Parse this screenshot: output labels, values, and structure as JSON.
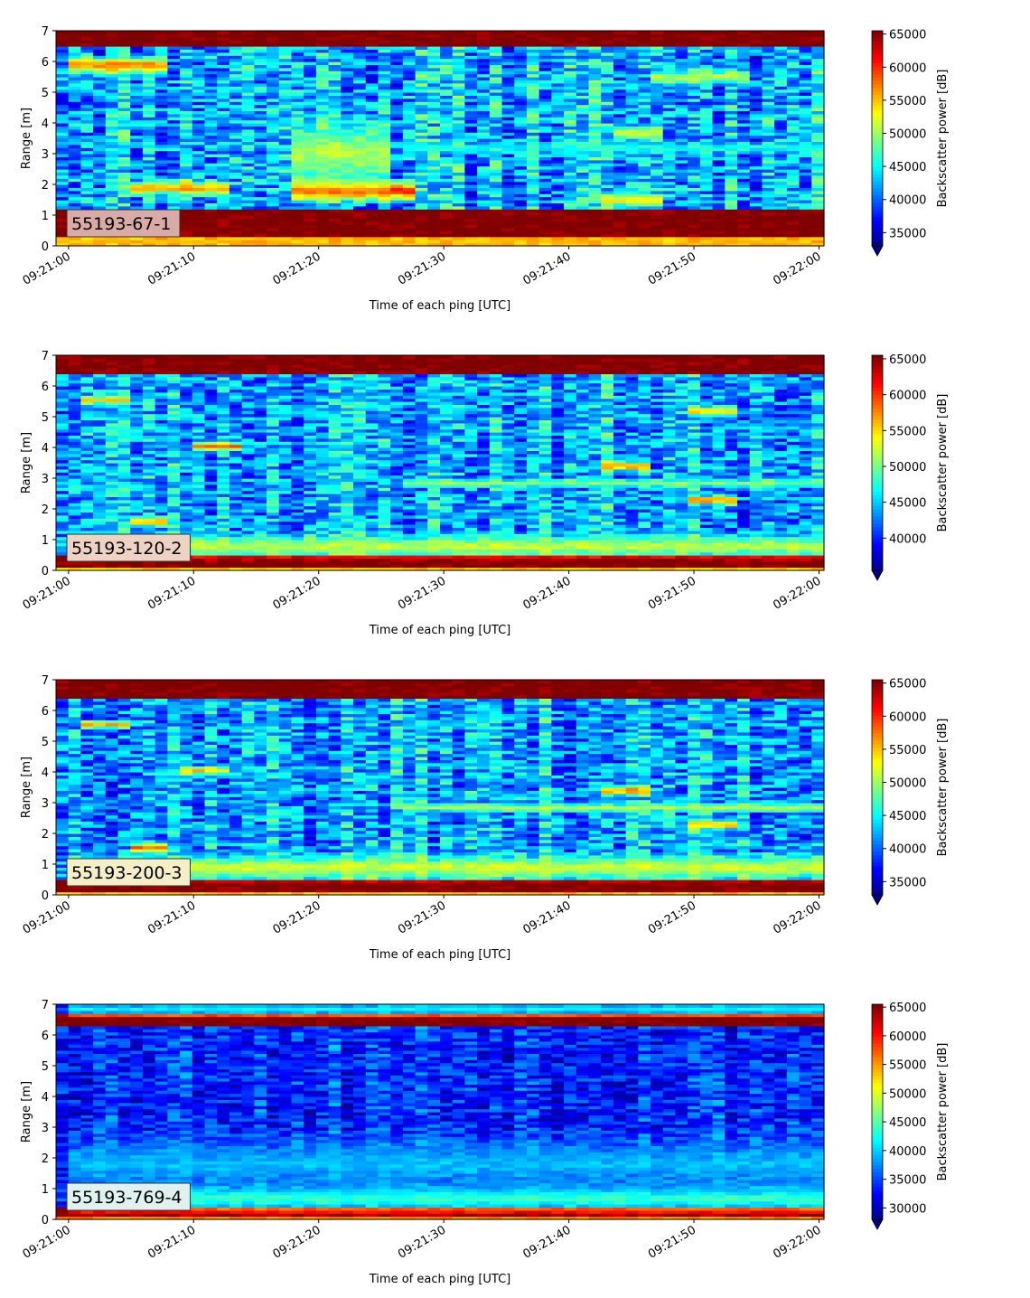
{
  "chart_data": [
    {
      "type": "heatmap",
      "label": "55193-67-1",
      "label_bg": "#d9aaa6",
      "xlabel": "Time of each ping [UTC]",
      "ylabel": "Range [m]",
      "xticks": [
        "09:21:00",
        "09:21:10",
        "09:21:20",
        "09:21:30",
        "09:21:40",
        "09:21:50",
        "09:22:00"
      ],
      "yticks": [
        "0",
        "1",
        "2",
        "3",
        "4",
        "5",
        "6",
        "7"
      ],
      "ylim": [
        0,
        7
      ],
      "xlim_seconds": [
        -1,
        60.4
      ],
      "colorbar": {
        "label": "Backscatter power [dB]",
        "vmin": 33000,
        "vmax": 65500,
        "ticks": [
          35000,
          40000,
          45000,
          50000,
          55000,
          60000,
          65000
        ],
        "tick_labels": [
          "35000",
          "40000",
          "45000",
          "50000",
          "55000",
          "60000",
          "65000"
        ]
      },
      "features": {
        "surface": [
          6.45,
          7.0
        ],
        "bed": [
          0.3,
          1.15
        ],
        "layers": [
          {
            "y": 5.9,
            "w": 0.35,
            "x0": 0,
            "x1": 8,
            "v": 59000
          },
          {
            "y": 1.9,
            "w": 0.3,
            "x0": 5,
            "x1": 13,
            "v": 58000
          },
          {
            "y": 1.8,
            "w": 0.45,
            "x0": 18,
            "x1": 28,
            "v": 62000
          },
          {
            "y": 3.2,
            "w": 0.25,
            "x0": 27,
            "x1": 60,
            "v": 46500
          },
          {
            "y": 3.7,
            "w": 0.3,
            "x0": 44,
            "x1": 48,
            "v": 53000
          },
          {
            "y": 1.5,
            "w": 0.3,
            "x0": 43,
            "x1": 48,
            "v": 55000
          },
          {
            "y": 5.5,
            "w": 0.3,
            "x0": 47,
            "x1": 54,
            "v": 52000
          },
          {
            "y": 3.0,
            "w": 1.6,
            "x0": 18,
            "x1": 26,
            "v": 51000
          }
        ],
        "base": 43000,
        "noise": 6500,
        "seed": 11
      }
    },
    {
      "type": "heatmap",
      "label": "55193-120-2",
      "label_bg": "#eed3c5",
      "xlabel": "Time of each ping [UTC]",
      "ylabel": "Range [m]",
      "xticks": [
        "09:21:00",
        "09:21:10",
        "09:21:20",
        "09:21:30",
        "09:21:40",
        "09:21:50",
        "09:22:00"
      ],
      "yticks": [
        "0",
        "1",
        "2",
        "3",
        "4",
        "5",
        "6",
        "7"
      ],
      "ylim": [
        0,
        7
      ],
      "xlim_seconds": [
        -1,
        60.4
      ],
      "colorbar": {
        "label": "Backscatter power [dB]",
        "vmin": 35500,
        "vmax": 65500,
        "ticks": [
          40000,
          45000,
          50000,
          55000,
          60000,
          65000
        ],
        "tick_labels": [
          "40000",
          "45000",
          "50000",
          "55000",
          "60000",
          "65000"
        ]
      },
      "features": {
        "surface": [
          6.4,
          7.0
        ],
        "bed": [
          0.15,
          0.45
        ],
        "layers": [
          {
            "y": 0.8,
            "w": 0.5,
            "x0": 0,
            "x1": 60,
            "v": 53000
          },
          {
            "y": 4.05,
            "w": 0.2,
            "x0": 10,
            "x1": 14,
            "v": 59000
          },
          {
            "y": 5.55,
            "w": 0.2,
            "x0": 1,
            "x1": 5,
            "v": 55000
          },
          {
            "y": 2.85,
            "w": 0.2,
            "x0": 27,
            "x1": 60,
            "v": 51000
          },
          {
            "y": 3.4,
            "w": 0.2,
            "x0": 43,
            "x1": 47,
            "v": 60000
          },
          {
            "y": 2.3,
            "w": 0.2,
            "x0": 50,
            "x1": 53,
            "v": 60000
          },
          {
            "y": 5.2,
            "w": 0.2,
            "x0": 50,
            "x1": 53,
            "v": 57000
          },
          {
            "y": 1.6,
            "w": 0.2,
            "x0": 5,
            "x1": 8,
            "v": 59000
          }
        ],
        "base": 44500,
        "noise": 5500,
        "seed": 23
      }
    },
    {
      "type": "heatmap",
      "label": "55193-200-3",
      "label_bg": "#f4efc6",
      "xlabel": "Time of each ping [UTC]",
      "ylabel": "Range [m]",
      "xticks": [
        "09:21:00",
        "09:21:10",
        "09:21:20",
        "09:21:30",
        "09:21:40",
        "09:21:50",
        "09:22:00"
      ],
      "yticks": [
        "0",
        "1",
        "2",
        "3",
        "4",
        "5",
        "6",
        "7"
      ],
      "ylim": [
        0,
        7
      ],
      "xlim_seconds": [
        -1,
        60.4
      ],
      "colorbar": {
        "label": "Backscatter power [dB]",
        "vmin": 33000,
        "vmax": 65500,
        "ticks": [
          35000,
          40000,
          45000,
          50000,
          55000,
          60000,
          65000
        ],
        "tick_labels": [
          "35000",
          "40000",
          "45000",
          "50000",
          "55000",
          "60000",
          "65000"
        ]
      },
      "features": {
        "surface": [
          6.4,
          7.0
        ],
        "bed": [
          0.15,
          0.45
        ],
        "layers": [
          {
            "y": 0.9,
            "w": 0.55,
            "x0": 0,
            "x1": 60,
            "v": 52500
          },
          {
            "y": 5.55,
            "w": 0.2,
            "x0": 1,
            "x1": 5,
            "v": 56000
          },
          {
            "y": 4.05,
            "w": 0.2,
            "x0": 9,
            "x1": 13,
            "v": 55000
          },
          {
            "y": 2.85,
            "w": 0.2,
            "x0": 27,
            "x1": 60,
            "v": 51000
          },
          {
            "y": 3.4,
            "w": 0.2,
            "x0": 43,
            "x1": 47,
            "v": 59000
          },
          {
            "y": 2.3,
            "w": 0.2,
            "x0": 50,
            "x1": 53,
            "v": 58000
          },
          {
            "y": 1.55,
            "w": 0.2,
            "x0": 5,
            "x1": 8,
            "v": 58000
          }
        ],
        "base": 42500,
        "noise": 6000,
        "seed": 37
      }
    },
    {
      "type": "heatmap",
      "label": "55193-769-4",
      "label_bg": "#dff2ef",
      "xlabel": "Time of each ping [UTC]",
      "ylabel": "Range [m]",
      "xticks": [
        "09:21:00",
        "09:21:10",
        "09:21:20",
        "09:21:30",
        "09:21:40",
        "09:21:50",
        "09:22:00"
      ],
      "yticks": [
        "0",
        "1",
        "2",
        "3",
        "4",
        "5",
        "6",
        "7"
      ],
      "ylim": [
        0,
        7
      ],
      "xlim_seconds": [
        -1,
        60.4
      ],
      "colorbar": {
        "label": "Backscatter power [dB]",
        "vmin": 28000,
        "vmax": 65500,
        "ticks": [
          30000,
          35000,
          40000,
          45000,
          50000,
          55000,
          60000,
          65000
        ],
        "tick_labels": [
          "30000",
          "35000",
          "40000",
          "45000",
          "50000",
          "55000",
          "60000",
          "65000"
        ]
      },
      "features": {
        "surface": [
          6.3,
          6.65
        ],
        "bed": [
          0.15,
          0.4
        ],
        "layers": [
          {
            "y": 0.7,
            "w": 0.6,
            "x0": 0,
            "x1": 60,
            "v": 45000
          },
          {
            "y": 1.8,
            "w": 1.2,
            "x0": 0,
            "x1": 60,
            "v": 40000
          },
          {
            "y": 6.85,
            "w": 0.3,
            "x0": 0,
            "x1": 60,
            "v": 42000
          }
        ],
        "base": 34500,
        "noise": 5000,
        "seed": 53
      }
    }
  ]
}
